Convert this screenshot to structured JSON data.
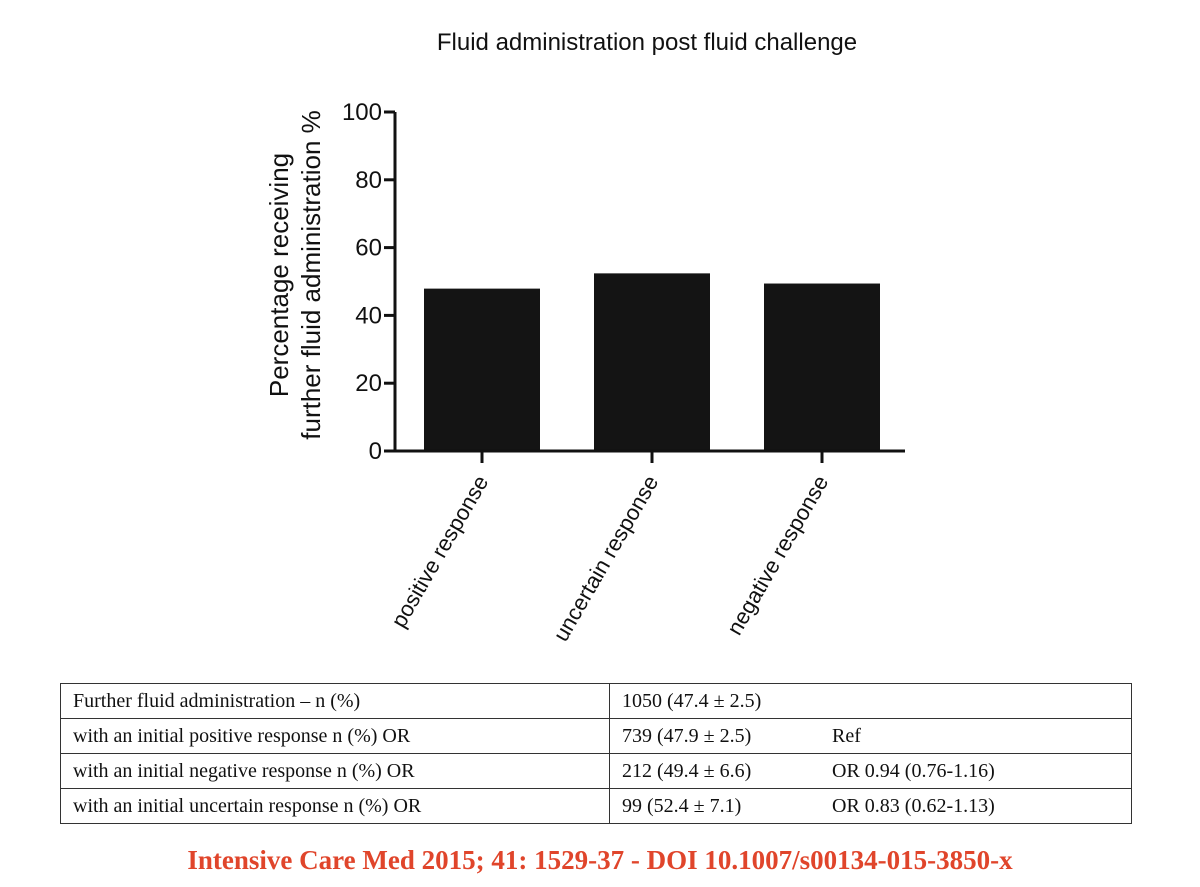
{
  "chart_data": {
    "type": "bar",
    "title": "Fluid administration post fluid challenge",
    "ylabel_line1": "Percentage receiving",
    "ylabel_line2": "further fluid administration %",
    "xlabel": "",
    "categories": [
      "positive response",
      "uncertain response",
      "negative response"
    ],
    "values": [
      47.9,
      52.4,
      49.4
    ],
    "ylim": [
      0,
      100
    ],
    "yticks": [
      0,
      20,
      40,
      60,
      80,
      100
    ],
    "bar_color": "#141414",
    "grid": false,
    "legend": "none"
  },
  "table": {
    "rows": [
      {
        "label": "Further fluid administration – n (%)",
        "value": "1050 (47.4 ± 2.5)",
        "or": ""
      },
      {
        "label": "with an initial positive response n (%) OR",
        "value": "739 (47.9 ± 2.5)",
        "or": "Ref"
      },
      {
        "label": "with an initial negative response n (%) OR",
        "value": "212 (49.4 ± 6.6)",
        "or": "OR 0.94 (0.76-1.16)"
      },
      {
        "label": "with an initial uncertain response n (%) OR",
        "value": "99 (52.4 ± 7.1)",
        "or": "OR 0.83 (0.62-1.13)"
      }
    ]
  },
  "citation": "Intensive Care Med 2015; 41: 1529-37 - DOI 10.1007/s00134-015-3850-x",
  "colors": {
    "citation": "#e0452b"
  }
}
